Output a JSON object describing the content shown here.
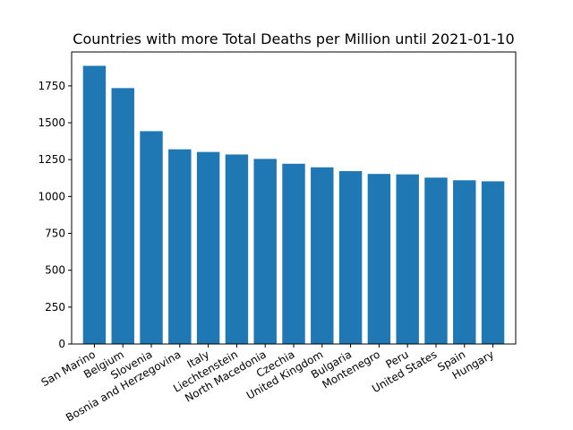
{
  "chart_data": {
    "type": "bar",
    "title": "Countries with more Total Deaths per Million until 2021-01-10",
    "xlabel": "",
    "ylabel": "",
    "categories": [
      "San Marino",
      "Belgium",
      "Slovenia",
      "Bosnia and Herzegovina",
      "Italy",
      "Liechtenstein",
      "North Macedonia",
      "Czechia",
      "United Kingdom",
      "Bulgaria",
      "Montenegro",
      "Peru",
      "United States",
      "Spain",
      "Hungary"
    ],
    "values": [
      1886,
      1735,
      1443,
      1320,
      1302,
      1285,
      1255,
      1222,
      1198,
      1172,
      1153,
      1150,
      1128,
      1110,
      1103
    ],
    "yticks": [
      0,
      250,
      500,
      750,
      1000,
      1250,
      1500,
      1750
    ],
    "ylim": [
      0,
      1980
    ],
    "grid": false,
    "bar_color": "#1f77b4"
  }
}
